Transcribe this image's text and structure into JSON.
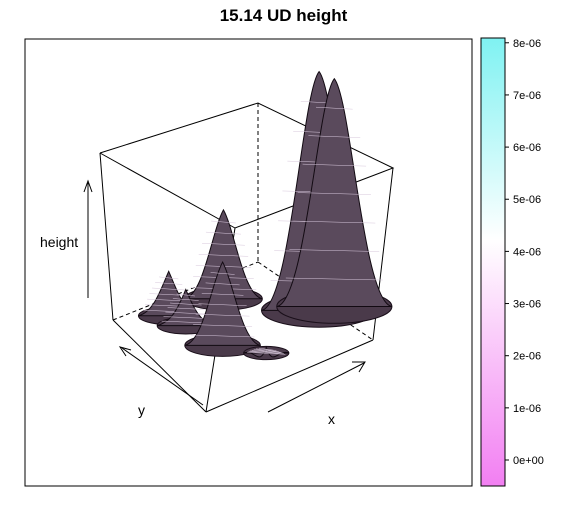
{
  "chart_data": {
    "type": "surface",
    "title": "15.14 UD height",
    "xlabel": "x",
    "ylabel": "y",
    "zlabel": "height",
    "colorbar": {
      "min": 0,
      "max": 8.8e-06,
      "ticks": [
        "0e+00",
        "1e-06",
        "2e-06",
        "3e-06",
        "4e-06",
        "5e-06",
        "6e-06",
        "7e-06",
        "8e-06"
      ],
      "tick_values": [
        0,
        1e-06,
        2e-06,
        3e-06,
        4e-06,
        5e-06,
        6e-06,
        7e-06,
        8e-06
      ],
      "colors": [
        "#f27ff2",
        "#ffffff",
        "#7ff2f2"
      ]
    },
    "surface_color": "#3a2a3a",
    "peaks": [
      {
        "x": 0.9,
        "y": 0.4,
        "height": 8.6e-06
      },
      {
        "x": 0.98,
        "y": 0.38,
        "height": 8.2e-06
      },
      {
        "x": 0.55,
        "y": 0.8,
        "height": 3.2e-06
      },
      {
        "x": 0.35,
        "y": 0.45,
        "height": 3e-06
      },
      {
        "x": 0.25,
        "y": 0.85,
        "height": 1.6e-06
      },
      {
        "x": 0.28,
        "y": 0.72,
        "height": 1.3e-06
      },
      {
        "x": 0.5,
        "y": 0.25,
        "height": 2e-07
      }
    ]
  }
}
